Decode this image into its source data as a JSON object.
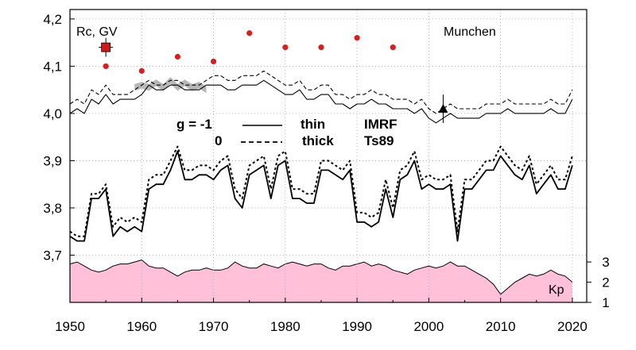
{
  "chart_data": {
    "type": "line",
    "ylabel": "Rc, GV",
    "station": "Munchen",
    "xlim": [
      1950,
      2022
    ],
    "ylim": [
      3.6,
      4.22
    ],
    "x_ticks": [
      1950,
      1960,
      1970,
      1980,
      1990,
      2000,
      2010,
      2020
    ],
    "y_ticks": [
      "3,7",
      "3,8",
      "3,9",
      "4,0",
      "4,1",
      "4,2"
    ],
    "kp_axis": {
      "label": "Kp",
      "ticks": [
        "1",
        "2",
        "3"
      ],
      "range": [
        1,
        3.2
      ]
    },
    "legend": {
      "row1": {
        "g": "g  = -1",
        "style": "thin",
        "model": "IMRF"
      },
      "row2": {
        "g": "0",
        "style": "thick",
        "model": "Ts89"
      }
    },
    "colors": {
      "kp_fill": "#ffc0d8",
      "points": "#d42020",
      "measured_square": "#cc1a1a",
      "band": "#aaaaaa"
    },
    "years": [
      1950,
      1951,
      1952,
      1953,
      1954,
      1955,
      1956,
      1957,
      1958,
      1959,
      1960,
      1961,
      1962,
      1963,
      1964,
      1965,
      1966,
      1967,
      1968,
      1969,
      1970,
      1971,
      1972,
      1973,
      1974,
      1975,
      1976,
      1977,
      1978,
      1979,
      1980,
      1981,
      1982,
      1983,
      1984,
      1985,
      1986,
      1987,
      1988,
      1989,
      1990,
      1991,
      1992,
      1993,
      1994,
      1995,
      1996,
      1997,
      1998,
      1999,
      2000,
      2001,
      2002,
      2003,
      2004,
      2005,
      2006,
      2007,
      2008,
      2009,
      2010,
      2011,
      2012,
      2013,
      2014,
      2015,
      2016,
      2017,
      2018,
      2019,
      2020
    ],
    "series": [
      {
        "name": "IMRF g=-1 (upper)",
        "values": [
          4.0,
          4.01,
          4.0,
          4.03,
          4.02,
          4.04,
          4.02,
          4.03,
          4.03,
          4.03,
          4.04,
          4.06,
          4.05,
          4.05,
          4.06,
          4.06,
          4.05,
          4.05,
          4.05,
          4.06,
          4.06,
          4.06,
          4.05,
          4.05,
          4.06,
          4.06,
          4.06,
          4.07,
          4.06,
          4.05,
          4.04,
          4.04,
          4.05,
          4.03,
          4.03,
          4.04,
          4.04,
          4.02,
          4.02,
          4.01,
          4.02,
          4.02,
          4.03,
          4.02,
          4.02,
          4.01,
          4.01,
          4.01,
          4.0,
          4.01,
          3.99,
          3.98,
          3.99,
          4.0,
          3.99,
          3.99,
          3.99,
          3.99,
          4.0,
          4.0,
          4.0,
          4.01,
          4.0,
          4.0,
          4.0,
          4.0,
          4.0,
          4.01,
          4.0,
          4.0,
          4.03
        ]
      },
      {
        "name": "Ts89 g=0 (upper)",
        "values": [
          4.02,
          4.03,
          4.02,
          4.05,
          4.04,
          4.06,
          4.04,
          4.04,
          4.04,
          4.05,
          4.06,
          4.07,
          4.06,
          4.06,
          4.07,
          4.07,
          4.06,
          4.06,
          4.06,
          4.07,
          4.08,
          4.08,
          4.07,
          4.07,
          4.08,
          4.08,
          4.08,
          4.09,
          4.08,
          4.07,
          4.06,
          4.06,
          4.07,
          4.05,
          4.05,
          4.06,
          4.06,
          4.04,
          4.04,
          4.03,
          4.04,
          4.04,
          4.05,
          4.04,
          4.04,
          4.03,
          4.03,
          4.03,
          4.02,
          4.03,
          4.01,
          4.0,
          4.01,
          4.02,
          4.01,
          4.01,
          4.01,
          4.01,
          4.02,
          4.02,
          4.02,
          4.03,
          4.02,
          4.02,
          4.02,
          4.02,
          4.02,
          4.03,
          4.02,
          4.02,
          4.05
        ]
      },
      {
        "name": "IMRF g=-1 (lower)",
        "values": [
          3.74,
          3.73,
          3.73,
          3.82,
          3.82,
          3.84,
          3.74,
          3.76,
          3.75,
          3.76,
          3.75,
          3.84,
          3.85,
          3.85,
          3.88,
          3.92,
          3.86,
          3.86,
          3.87,
          3.87,
          3.86,
          3.88,
          3.89,
          3.82,
          3.8,
          3.87,
          3.88,
          3.89,
          3.82,
          3.89,
          3.9,
          3.82,
          3.82,
          3.81,
          3.81,
          3.88,
          3.88,
          3.87,
          3.86,
          3.88,
          3.77,
          3.77,
          3.76,
          3.77,
          3.84,
          3.78,
          3.86,
          3.87,
          3.9,
          3.84,
          3.85,
          3.84,
          3.84,
          3.85,
          3.73,
          3.84,
          3.84,
          3.86,
          3.88,
          3.88,
          3.91,
          3.89,
          3.87,
          3.86,
          3.89,
          3.83,
          3.85,
          3.87,
          3.84,
          3.84,
          3.89
        ]
      },
      {
        "name": "Ts89 g=0 (lower)",
        "values": [
          3.75,
          3.74,
          3.74,
          3.83,
          3.83,
          3.85,
          3.76,
          3.78,
          3.77,
          3.78,
          3.77,
          3.86,
          3.87,
          3.87,
          3.9,
          3.93,
          3.88,
          3.88,
          3.89,
          3.89,
          3.88,
          3.9,
          3.91,
          3.84,
          3.82,
          3.89,
          3.9,
          3.91,
          3.84,
          3.91,
          3.92,
          3.84,
          3.84,
          3.83,
          3.83,
          3.9,
          3.9,
          3.89,
          3.88,
          3.9,
          3.79,
          3.79,
          3.78,
          3.79,
          3.86,
          3.8,
          3.88,
          3.89,
          3.92,
          3.86,
          3.87,
          3.86,
          3.86,
          3.87,
          3.75,
          3.86,
          3.86,
          3.88,
          3.9,
          3.9,
          3.93,
          3.91,
          3.89,
          3.88,
          3.91,
          3.85,
          3.87,
          3.89,
          3.86,
          3.86,
          3.91
        ]
      },
      {
        "name": "Kp",
        "values": [
          2.9,
          3.0,
          2.8,
          2.6,
          2.5,
          2.6,
          2.8,
          2.9,
          2.9,
          3.0,
          3.1,
          2.8,
          2.7,
          2.7,
          2.5,
          2.3,
          2.5,
          2.6,
          2.6,
          2.7,
          2.6,
          2.6,
          2.7,
          3.0,
          2.8,
          2.7,
          2.7,
          2.9,
          2.8,
          2.7,
          2.9,
          3.0,
          2.9,
          2.8,
          2.9,
          2.9,
          2.7,
          2.6,
          2.8,
          2.8,
          2.9,
          3.0,
          2.8,
          2.9,
          2.8,
          2.6,
          2.5,
          2.4,
          2.6,
          2.7,
          2.8,
          2.7,
          2.8,
          3.0,
          2.8,
          2.8,
          2.6,
          2.4,
          2.2,
          1.9,
          1.4,
          1.7,
          2.0,
          2.2,
          2.4,
          2.3,
          2.4,
          2.6,
          2.4,
          2.3,
          2.0
        ]
      }
    ],
    "points": [
      {
        "x": 1955,
        "y": 4.1
      },
      {
        "x": 1960,
        "y": 4.09
      },
      {
        "x": 1965,
        "y": 4.12
      },
      {
        "x": 1970,
        "y": 4.11
      },
      {
        "x": 1975,
        "y": 4.17
      },
      {
        "x": 1980,
        "y": 4.14
      },
      {
        "x": 1985,
        "y": 4.14
      },
      {
        "x": 1990,
        "y": 4.16
      },
      {
        "x": 1995,
        "y": 4.14
      }
    ],
    "measured_1955": {
      "x": 1955,
      "y": 4.14,
      "err": 0.02
    },
    "measured_2002": {
      "x": 2002,
      "y": 4.01,
      "err": 0.03
    },
    "band": {
      "x": [
        1959,
        1960,
        1961,
        1962,
        1963,
        1964,
        1965,
        1966,
        1967,
        1968,
        1969
      ],
      "center": [
        4.055,
        4.06,
        4.055,
        4.065,
        4.055,
        4.07,
        4.055,
        4.065,
        4.055,
        4.06,
        4.05
      ],
      "halfwidth": 0.007
    }
  }
}
